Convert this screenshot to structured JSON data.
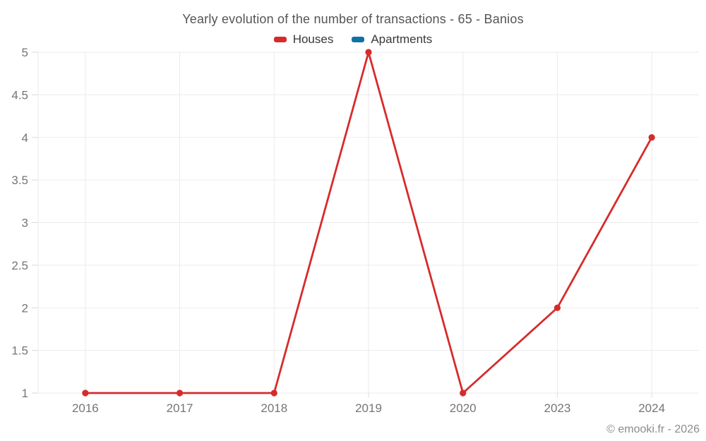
{
  "chart": {
    "title": "Yearly evolution of the number of transactions - 65 - Banios"
  },
  "legend": {
    "items": [
      {
        "id": "houses",
        "label": "Houses",
        "color": "#d62b2b"
      },
      {
        "id": "apartments",
        "label": "Apartments",
        "color": "#0f72a5"
      }
    ]
  },
  "footer": {
    "copyright": "© emooki.fr - 2026"
  },
  "chart_data": {
    "type": "line",
    "title": "Yearly evolution of the number of transactions - 65 - Banios",
    "categories": [
      "2016",
      "2017",
      "2018",
      "2019",
      "2020",
      "2023",
      "2024"
    ],
    "series": [
      {
        "name": "Houses",
        "color": "#d62b2b",
        "values": [
          1,
          1,
          1,
          5,
          1,
          2,
          4
        ]
      },
      {
        "name": "Apartments",
        "color": "#0f72a5",
        "values": []
      }
    ],
    "xlabel": "",
    "ylabel": "",
    "ylim": [
      1,
      5
    ],
    "yticks": [
      1,
      1.5,
      2,
      2.5,
      3,
      3.5,
      4,
      4.5,
      5
    ],
    "grid": true,
    "legend_position": "top",
    "colors": {
      "gridline": "#ebebeb",
      "axis_tick": "#d9d9d9",
      "tick_label": "#757575"
    }
  }
}
